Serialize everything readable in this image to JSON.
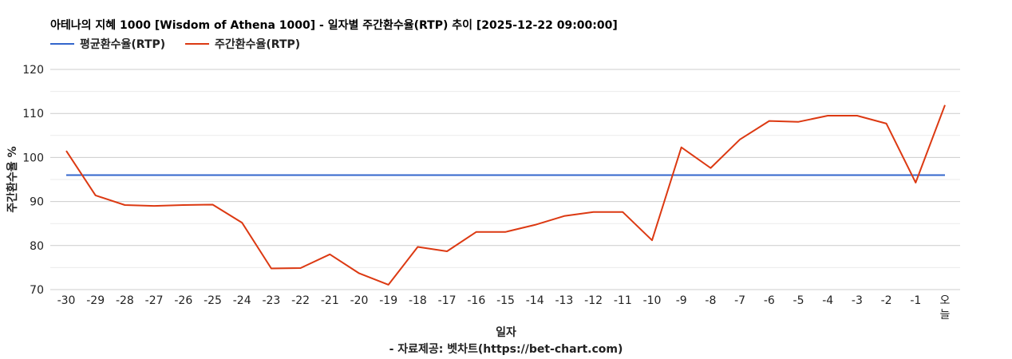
{
  "chart_data": {
    "type": "line",
    "title": "아테나의 지혜 1000 [Wisdom of Athena 1000] - 일자별 주간환수율(RTP) 추이 [2025-12-22 09:00:00]",
    "xlabel": "일자",
    "ylabel": "주간환수율 %",
    "source": "- 자료제공: 벳차트(https://bet-chart.com)",
    "legend_position": "top-left",
    "grid": true,
    "ylim": [
      70,
      120
    ],
    "yticks": [
      "70",
      "80",
      "90",
      "100",
      "110",
      "120"
    ],
    "categories": [
      "-30",
      "-29",
      "-28",
      "-27",
      "-26",
      "-25",
      "-24",
      "-23",
      "-22",
      "-21",
      "-20",
      "-19",
      "-18",
      "-17",
      "-16",
      "-15",
      "-14",
      "-13",
      "-12",
      "-11",
      "-10",
      "-9",
      "-8",
      "-7",
      "-6",
      "-5",
      "-4",
      "-3",
      "-2",
      "-1",
      "오늘"
    ],
    "series": [
      {
        "name": "평균환수율(RTP)",
        "color": "#3366cc",
        "values": [
          96,
          96,
          96,
          96,
          96,
          96,
          96,
          96,
          96,
          96,
          96,
          96,
          96,
          96,
          96,
          96,
          96,
          96,
          96,
          96,
          96,
          96,
          96,
          96,
          96,
          96,
          96,
          96,
          96,
          96,
          96
        ]
      },
      {
        "name": "주간환수율(RTP)",
        "color": "#dc3912",
        "values": [
          101.5,
          91.4,
          89.2,
          89.0,
          89.2,
          89.3,
          85.2,
          74.8,
          74.9,
          78.0,
          73.7,
          71.1,
          79.7,
          78.7,
          83.1,
          83.1,
          84.7,
          86.7,
          87.6,
          87.6,
          81.2,
          102.3,
          97.6,
          104.1,
          108.3,
          108.1,
          109.5,
          109.5,
          107.7,
          94.3,
          111.9
        ]
      }
    ]
  }
}
